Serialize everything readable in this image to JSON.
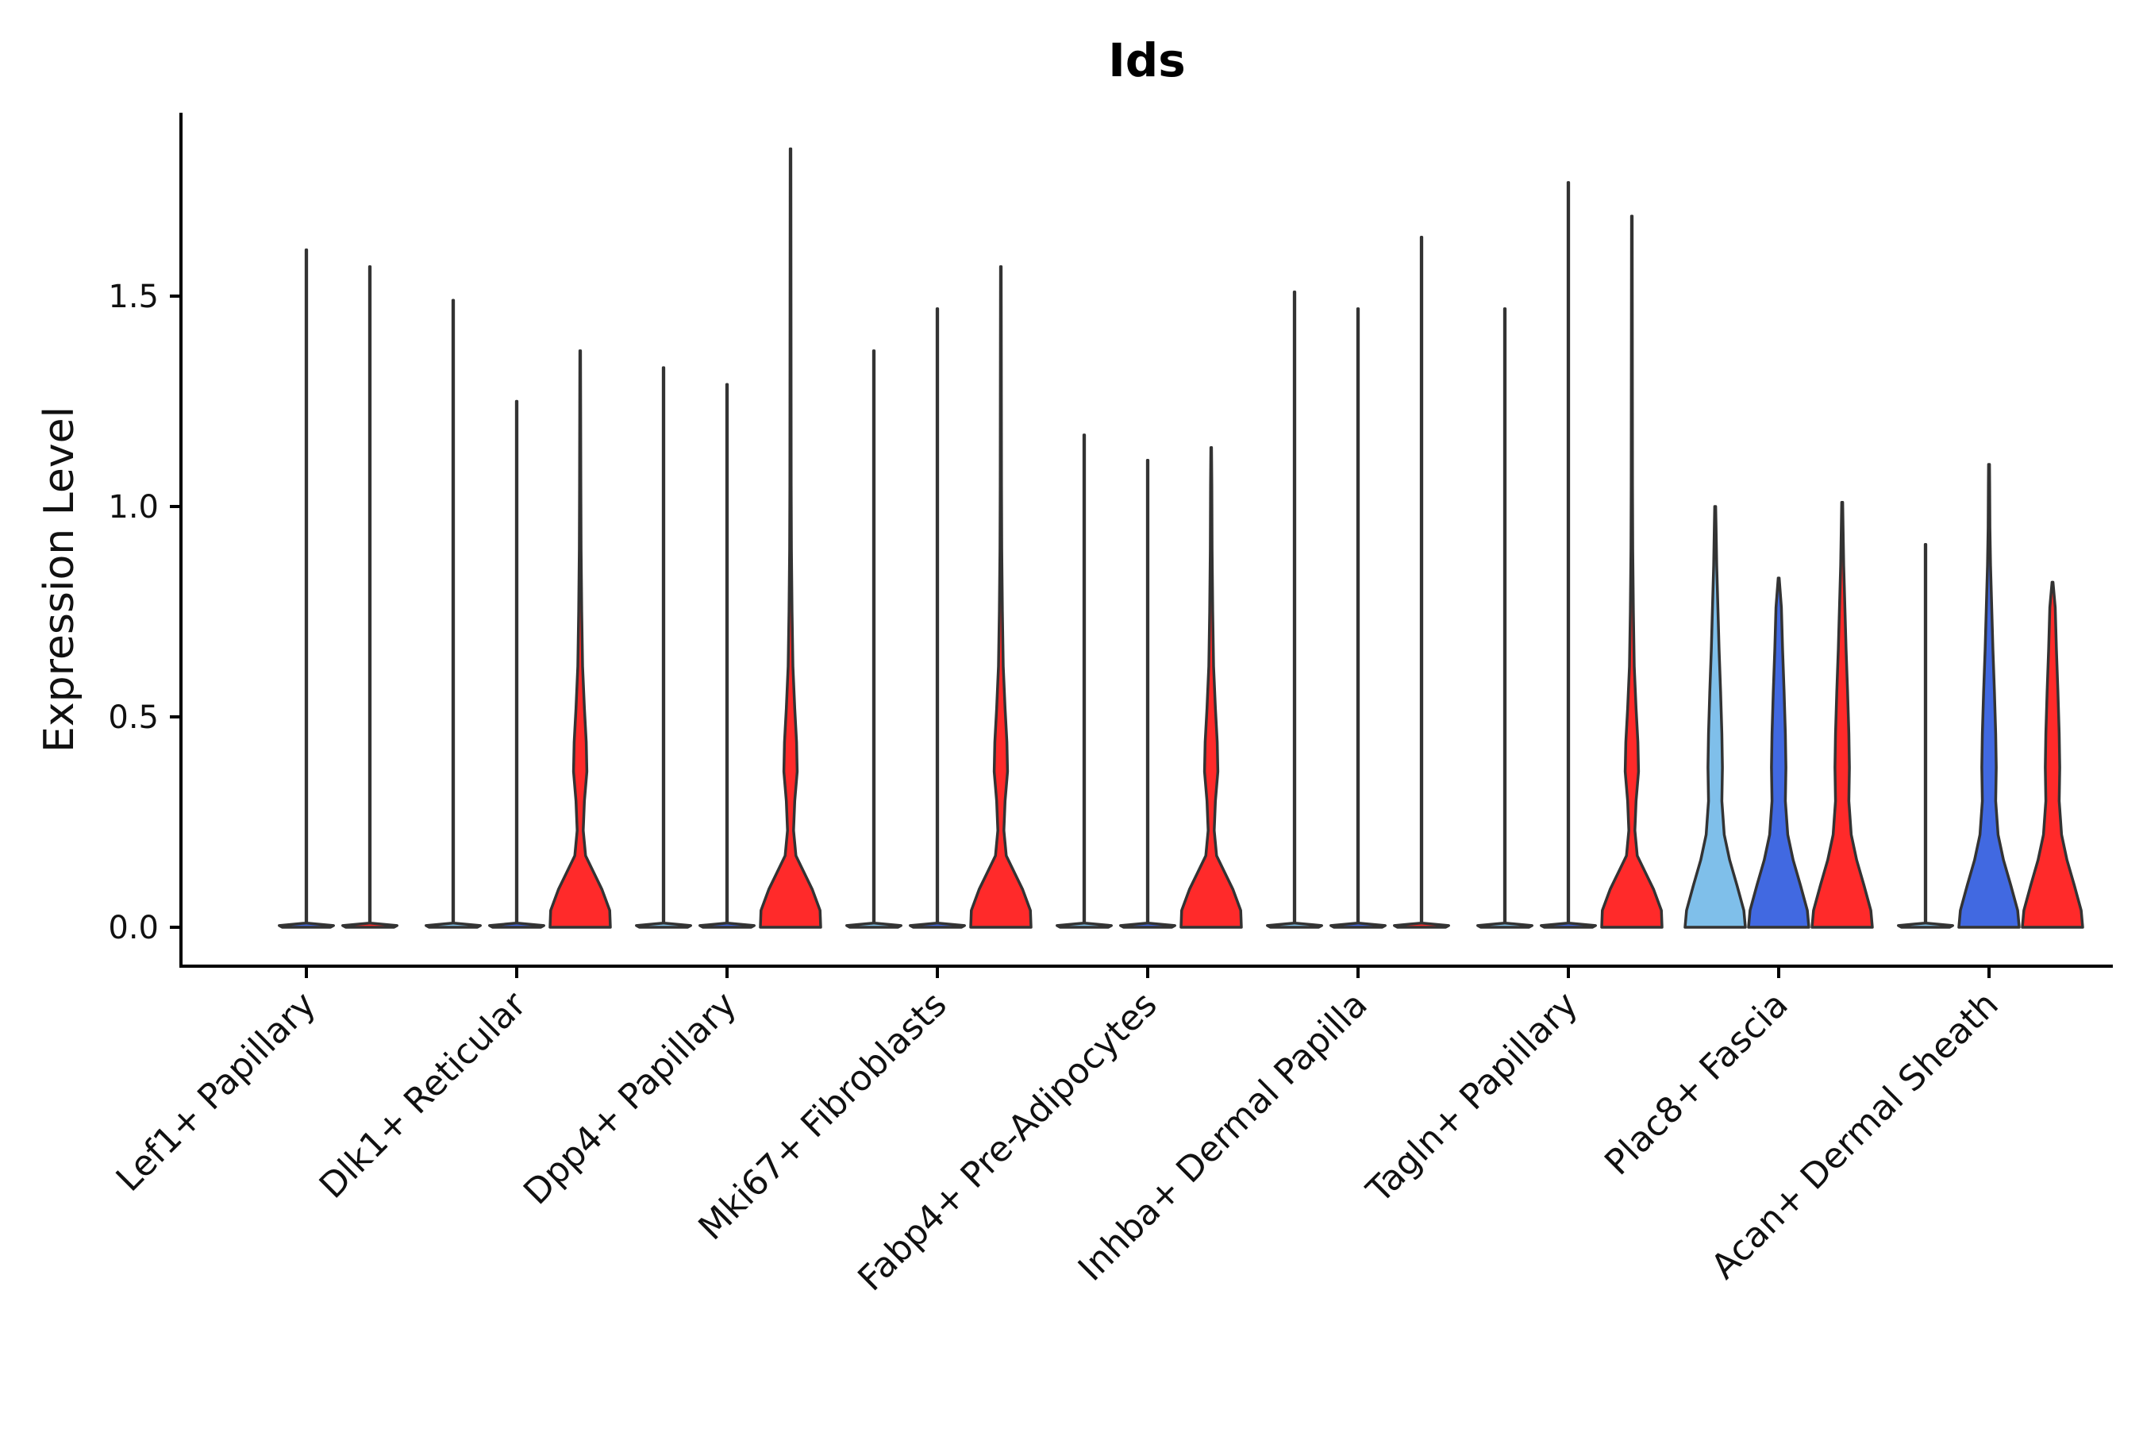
{
  "chart_data": {
    "type": "violin",
    "title": "Ids",
    "xlabel": "",
    "ylabel": "Expression Level",
    "ylim": [
      -0.09,
      1.95
    ],
    "yticks": [
      0.0,
      0.5,
      1.0,
      1.5
    ],
    "ytick_labels": [
      "0.0",
      "0.5",
      "1.0",
      "1.5"
    ],
    "grid": false,
    "legend": "none",
    "categories": [
      "Lef1+ Papillary",
      "Dlk1+ Reticular",
      "Dpp4+ Papillary",
      "Mki67+ Fibroblasts",
      "Fabp4+ Pre-Adipocytes",
      "Inhba+ Dermal Papilla",
      "Tagln+ Papillary",
      "Plac8+ Fascia",
      "Acan+ Dermal Sheath"
    ],
    "groups": [
      {
        "name": "light-blue",
        "color": "#7fbfea"
      },
      {
        "name": "blue",
        "color": "#4169e1"
      },
      {
        "name": "red",
        "color": "#ff2a2a"
      }
    ],
    "violins": [
      {
        "category": 0,
        "group": 1,
        "max": 1.61,
        "shape": "spike"
      },
      {
        "category": 0,
        "group": 2,
        "max": 1.57,
        "shape": "spike"
      },
      {
        "category": 1,
        "group": 0,
        "max": 1.49,
        "shape": "spike"
      },
      {
        "category": 1,
        "group": 1,
        "max": 1.25,
        "shape": "spike"
      },
      {
        "category": 1,
        "group": 2,
        "max": 1.37,
        "shape": "bulge"
      },
      {
        "category": 2,
        "group": 0,
        "max": 1.33,
        "shape": "spike"
      },
      {
        "category": 2,
        "group": 1,
        "max": 1.29,
        "shape": "spike"
      },
      {
        "category": 2,
        "group": 2,
        "max": 1.85,
        "shape": "bulge"
      },
      {
        "category": 3,
        "group": 0,
        "max": 1.37,
        "shape": "spike"
      },
      {
        "category": 3,
        "group": 1,
        "max": 1.47,
        "shape": "spike"
      },
      {
        "category": 3,
        "group": 2,
        "max": 1.57,
        "shape": "bulge"
      },
      {
        "category": 4,
        "group": 0,
        "max": 1.17,
        "shape": "spike"
      },
      {
        "category": 4,
        "group": 1,
        "max": 1.11,
        "shape": "spike"
      },
      {
        "category": 4,
        "group": 2,
        "max": 1.14,
        "shape": "bulge"
      },
      {
        "category": 5,
        "group": 0,
        "max": 1.51,
        "shape": "spike"
      },
      {
        "category": 5,
        "group": 1,
        "max": 1.47,
        "shape": "spike"
      },
      {
        "category": 5,
        "group": 2,
        "max": 1.64,
        "shape": "spike"
      },
      {
        "category": 6,
        "group": 0,
        "max": 1.47,
        "shape": "spike"
      },
      {
        "category": 6,
        "group": 1,
        "max": 1.77,
        "shape": "spike"
      },
      {
        "category": 6,
        "group": 2,
        "max": 1.69,
        "shape": "bulge"
      },
      {
        "category": 7,
        "group": 0,
        "max": 1.0,
        "shape": "full"
      },
      {
        "category": 7,
        "group": 1,
        "max": 0.83,
        "shape": "full"
      },
      {
        "category": 7,
        "group": 2,
        "max": 1.01,
        "shape": "full"
      },
      {
        "category": 8,
        "group": 0,
        "max": 0.91,
        "shape": "spike"
      },
      {
        "category": 8,
        "group": 1,
        "max": 1.1,
        "shape": "full"
      },
      {
        "category": 8,
        "group": 2,
        "max": 0.82,
        "shape": "full"
      }
    ]
  }
}
